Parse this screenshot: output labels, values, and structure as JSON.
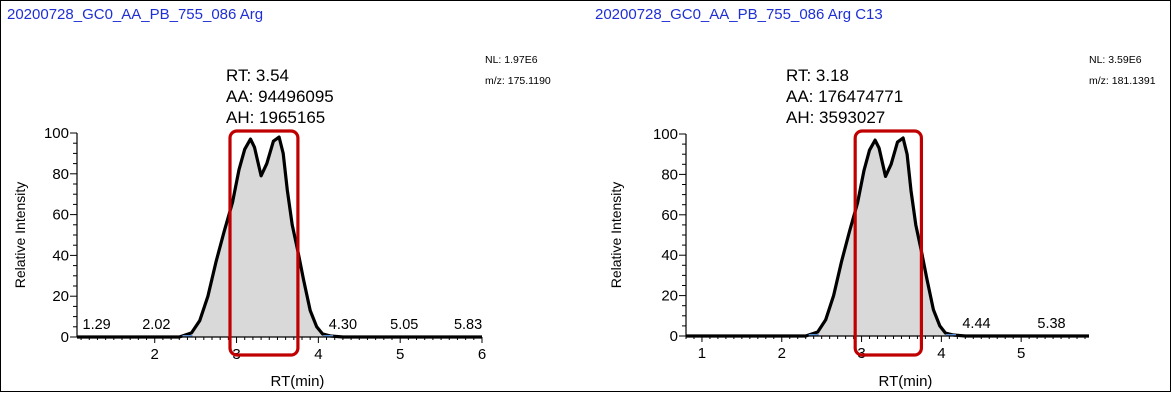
{
  "chart_data": [
    {
      "type": "area",
      "title": "20200728_GC0_AA_PB_755_086  Arg",
      "info": {
        "nl": "NL: 1.97E6",
        "mz": "m/z: 175.1190"
      },
      "peak_info": {
        "rt": "RT: 3.54",
        "aa": "AA: 94496095",
        "ah": "AH: 1965165"
      },
      "xlabel": "RT(min)",
      "ylabel": "Relative Intensity",
      "xlim": [
        1.05,
        6.0
      ],
      "ylim": [
        0,
        100
      ],
      "xticks": [
        2,
        3,
        4,
        5,
        6
      ],
      "yticks": [
        0,
        20,
        40,
        60,
        80,
        100
      ],
      "peak_labels": [
        {
          "text": "1.29",
          "x": 1.29,
          "y": 4
        },
        {
          "text": "2.02",
          "x": 2.02,
          "y": 4
        },
        {
          "text": "4.30",
          "x": 4.3,
          "y": 4
        },
        {
          "text": "5.05",
          "x": 5.05,
          "y": 4
        },
        {
          "text": "5.83",
          "x": 5.83,
          "y": 4
        }
      ],
      "box": [
        2.92,
        3.75
      ],
      "x": [
        1.05,
        2.3,
        2.45,
        2.55,
        2.65,
        2.75,
        2.85,
        2.95,
        3.03,
        3.1,
        3.17,
        3.22,
        3.3,
        3.37,
        3.45,
        3.52,
        3.57,
        3.62,
        3.68,
        3.75,
        3.82,
        3.9,
        3.98,
        4.05,
        4.15,
        4.3,
        5.0,
        6.0
      ],
      "y": [
        0,
        0,
        2,
        8,
        20,
        37,
        52,
        66,
        82,
        92,
        97,
        93,
        79,
        85,
        96,
        98,
        90,
        72,
        55,
        42,
        28,
        13,
        5,
        1.5,
        0.5,
        0,
        0,
        0
      ]
    },
    {
      "type": "area",
      "title": "20200728_GC0_AA_PB_755_086  Arg C13",
      "info": {
        "nl": "NL: 3.59E6",
        "mz": "m/z: 181.1391"
      },
      "peak_info": {
        "rt": "RT: 3.18",
        "aa": "AA: 176474771",
        "ah": "AH: 3593027"
      },
      "xlabel": "RT(min)",
      "ylabel": "Relative Intensity",
      "xlim": [
        0.8,
        5.85
      ],
      "ylim": [
        0,
        100
      ],
      "xticks": [
        1,
        2,
        3,
        4,
        5
      ],
      "yticks": [
        0,
        20,
        40,
        60,
        80,
        100
      ],
      "peak_labels": [
        {
          "text": "4.44",
          "x": 4.44,
          "y": 4
        },
        {
          "text": "5.38",
          "x": 5.38,
          "y": 4
        }
      ],
      "box": [
        2.92,
        3.75
      ],
      "x": [
        0.8,
        2.3,
        2.45,
        2.55,
        2.65,
        2.75,
        2.85,
        2.95,
        3.03,
        3.1,
        3.17,
        3.22,
        3.3,
        3.37,
        3.45,
        3.52,
        3.57,
        3.62,
        3.68,
        3.75,
        3.82,
        3.9,
        3.98,
        4.05,
        4.15,
        4.3,
        5.0,
        5.85
      ],
      "y": [
        0,
        0,
        2,
        8,
        20,
        37,
        52,
        66,
        82,
        92,
        97,
        93,
        79,
        85,
        96,
        98,
        90,
        72,
        55,
        42,
        28,
        13,
        5,
        1.5,
        0.5,
        0,
        0,
        0
      ]
    }
  ],
  "colors": {
    "title": "#1f2fd6",
    "trace": "#000000",
    "fill": "#d9d9d9",
    "box": "#c00000",
    "marker": "#5b8fd6"
  }
}
